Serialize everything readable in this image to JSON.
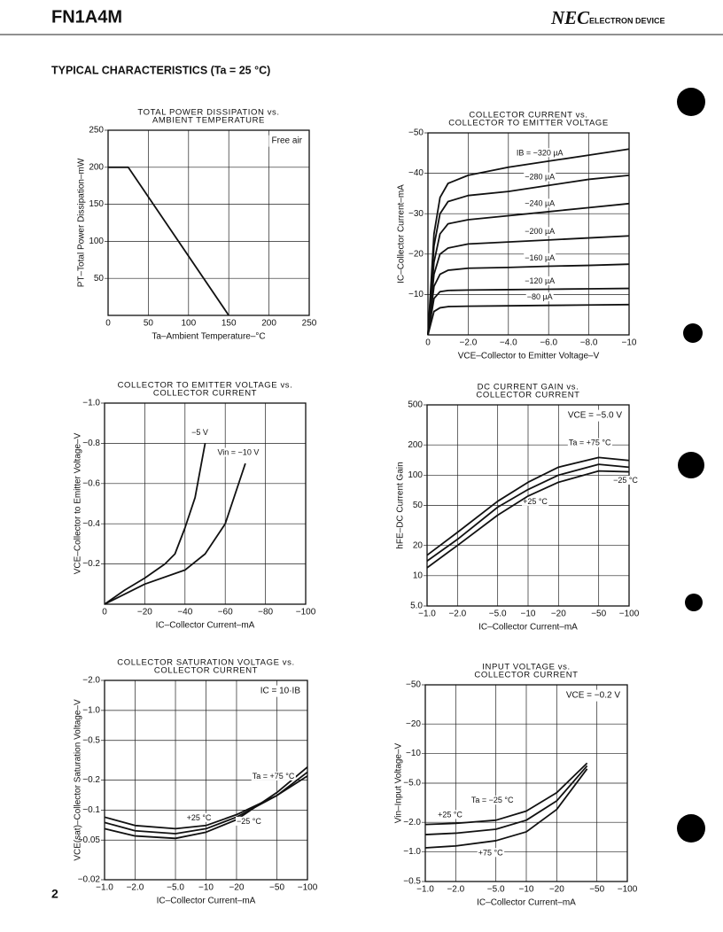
{
  "header": {
    "part": "FN1A4M",
    "brand": "NEC",
    "division": "ELECTRON DEVICE"
  },
  "section_title": "TYPICAL CHARACTERISTICS (Ta = 25 °C)",
  "page_number": "2",
  "chart_data": [
    {
      "type": "line",
      "title": [
        "TOTAL POWER DISSIPATION vs.",
        "AMBIENT TEMPERATURE"
      ],
      "xlabel": "Ta–Ambient Temperature–°C",
      "ylabel": "PT–Total Power Dissipation–mW",
      "xlim": [
        0,
        250
      ],
      "ylim": [
        0,
        250
      ],
      "xticks": [
        0,
        50,
        100,
        150,
        200,
        250
      ],
      "yticks": [
        50,
        100,
        150,
        200,
        250
      ],
      "xlog": false,
      "ylog": false,
      "grid": true,
      "color": "#111",
      "annotations": [
        "Free air"
      ],
      "series": [
        {
          "x": [
            0,
            25,
            150
          ],
          "values": [
            200,
            200,
            0
          ]
        }
      ]
    },
    {
      "type": "line",
      "title": [
        "COLLECTOR CURRENT vs.",
        "COLLECTOR TO EMITTER VOLTAGE"
      ],
      "xlabel": "VCE–Collector to Emitter Voltage–V",
      "ylabel": "IC–Collector Current–mA",
      "xlim": [
        0,
        -10
      ],
      "ylim": [
        0,
        -50
      ],
      "xticks": [
        0,
        {
          "value": -2,
          "label": "−2.0"
        },
        {
          "value": -4,
          "label": "−4.0"
        },
        {
          "value": -6,
          "label": "−6.0"
        },
        {
          "value": -8,
          "label": "−8.0"
        },
        {
          "value": -10,
          "label": "−10"
        }
      ],
      "yticks": [
        {
          "value": -10,
          "label": "−10"
        },
        {
          "value": -20,
          "label": "−20"
        },
        {
          "value": -30,
          "label": "−30"
        },
        {
          "value": -40,
          "label": "−40"
        },
        {
          "value": -50,
          "label": "−50"
        }
      ],
      "xlog": false,
      "ylog": false,
      "grid": true,
      "color": "#111",
      "series": [
        {
          "name": "IB = −320 µA",
          "x": [
            0,
            -0.3,
            -0.6,
            -1,
            -2,
            -4,
            -6,
            -8,
            -10
          ],
          "values": [
            0,
            -25,
            -34,
            -37.5,
            -39.5,
            -41.5,
            -43,
            -44.5,
            -46
          ]
        },
        {
          "name": "−280 µA",
          "x": [
            0,
            -0.3,
            -0.6,
            -1,
            -2,
            -4,
            -6,
            -8,
            -10
          ],
          "values": [
            0,
            -22,
            -30,
            -33,
            -34.5,
            -35.5,
            -37,
            -38.5,
            -39.5
          ]
        },
        {
          "name": "−240 µA",
          "x": [
            0,
            -0.3,
            -0.6,
            -1,
            -2,
            -4,
            -6,
            -8,
            -10
          ],
          "values": [
            0,
            -18,
            -25,
            -27.5,
            -28.5,
            -29.5,
            -30.5,
            -31.5,
            -32.5
          ]
        },
        {
          "name": "−200 µA",
          "x": [
            0,
            -0.3,
            -0.6,
            -1,
            -2,
            -4,
            -6,
            -8,
            -10
          ],
          "values": [
            0,
            -15,
            -20,
            -21.5,
            -22.5,
            -23,
            -23.5,
            -24,
            -24.5
          ]
        },
        {
          "name": "−160 µA",
          "x": [
            0,
            -0.3,
            -0.6,
            -1,
            -2,
            -4,
            -6,
            -8,
            -10
          ],
          "values": [
            0,
            -12,
            -15,
            -16,
            -16.5,
            -16.7,
            -17,
            -17.2,
            -17.5
          ]
        },
        {
          "name": "−120 µA",
          "x": [
            0,
            -0.3,
            -0.6,
            -1,
            -2,
            -4,
            -6,
            -8,
            -10
          ],
          "values": [
            0,
            -9,
            -10.7,
            -11,
            -11.1,
            -11.2,
            -11.3,
            -11.4,
            -11.5
          ]
        },
        {
          "name": "−80 µA",
          "x": [
            0,
            -0.3,
            -0.6,
            -1,
            -2,
            -4,
            -6,
            -8,
            -10
          ],
          "values": [
            0,
            -5.8,
            -6.7,
            -7,
            -7.1,
            -7.2,
            -7.3,
            -7.4,
            -7.5
          ]
        }
      ]
    },
    {
      "type": "line",
      "title": [
        "COLLECTOR TO EMITTER VOLTAGE vs.",
        "COLLECTOR CURRENT"
      ],
      "xlabel": "IC–Collector Current–mA",
      "ylabel": "VCE–Collector to Emitter Voltage–V",
      "xlim": [
        0,
        -100
      ],
      "ylim": [
        0,
        -1.0
      ],
      "xticks": [
        0,
        {
          "value": -20,
          "label": "−20"
        },
        {
          "value": -40,
          "label": "−40"
        },
        {
          "value": -60,
          "label": "−60"
        },
        {
          "value": -80,
          "label": "−80"
        },
        {
          "value": -100,
          "label": "−100"
        }
      ],
      "yticks": [
        {
          "value": -0.2,
          "label": "−0.2"
        },
        {
          "value": -0.4,
          "label": "−0.4"
        },
        {
          "value": -0.6,
          "label": "−0.6"
        },
        {
          "value": -0.8,
          "label": "−0.8"
        },
        {
          "value": -1.0,
          "label": "−1.0"
        }
      ],
      "xlog": false,
      "ylog": false,
      "grid": true,
      "color": "#111",
      "series": [
        {
          "name": "−5 V",
          "x": [
            0,
            -10,
            -20,
            -30,
            -35,
            -40,
            -45,
            -50
          ],
          "values": [
            0,
            -0.07,
            -0.13,
            -0.2,
            -0.25,
            -0.38,
            -0.53,
            -0.8
          ]
        },
        {
          "name": "Vin = −10 V",
          "x": [
            0,
            -20,
            -40,
            -50,
            -60,
            -70
          ],
          "values": [
            0,
            -0.1,
            -0.17,
            -0.25,
            -0.4,
            -0.7
          ]
        }
      ]
    },
    {
      "type": "line",
      "title": [
        "DC CURRENT GAIN vs.",
        "COLLECTOR CURRENT"
      ],
      "xlabel": "IC–Collector Current–mA",
      "ylabel": "hFE–DC Current Gain",
      "xlim": [
        -1,
        -100
      ],
      "ylim": [
        5,
        500
      ],
      "xticks": [
        {
          "value": -1,
          "label": "−1.0"
        },
        {
          "value": -2,
          "label": "−2.0"
        },
        {
          "value": -5,
          "label": "−5.0"
        },
        {
          "value": -10,
          "label": "−10"
        },
        {
          "value": -20,
          "label": "−20"
        },
        {
          "value": -50,
          "label": "−50"
        },
        {
          "value": -100,
          "label": "−100"
        }
      ],
      "yticks": [
        {
          "value": 5,
          "label": "5.0"
        },
        10,
        20,
        50,
        100,
        200,
        500
      ],
      "xlog": true,
      "ylog": true,
      "grid": true,
      "color": "#111",
      "annotations": [
        "VCE = −5.0 V"
      ],
      "series": [
        {
          "name": "Ta = +75 °C",
          "x": [
            -1,
            -2,
            -5,
            -10,
            -20,
            -50,
            -100
          ],
          "values": [
            16,
            27,
            55,
            85,
            120,
            150,
            140
          ]
        },
        {
          "name": "+25 °C",
          "x": [
            -1,
            -2,
            -5,
            -10,
            -20,
            -50,
            -100
          ],
          "values": [
            14,
            23,
            48,
            72,
            100,
            128,
            120
          ]
        },
        {
          "name": "−25 °C",
          "x": [
            -1,
            -2,
            -5,
            -10,
            -20,
            -50,
            -100
          ],
          "values": [
            12,
            20,
            40,
            62,
            85,
            110,
            108
          ]
        }
      ]
    },
    {
      "type": "line",
      "title": [
        "COLLECTOR SATURATION VOLTAGE vs.",
        "COLLECTOR CURRENT"
      ],
      "xlabel": "IC–Collector Current–mA",
      "ylabel": "VCE(sat)–Collector Saturation Voltage–V",
      "xlim": [
        -1,
        -100
      ],
      "ylim": [
        -0.02,
        -2.0
      ],
      "xticks": [
        {
          "value": -1,
          "label": "−1.0"
        },
        {
          "value": -2,
          "label": "−2.0"
        },
        {
          "value": -5,
          "label": "−5.0"
        },
        {
          "value": -10,
          "label": "−10"
        },
        {
          "value": -20,
          "label": "−20"
        },
        {
          "value": -50,
          "label": "−50"
        },
        {
          "value": -100,
          "label": "−100"
        }
      ],
      "yticks": [
        {
          "value": -0.02,
          "label": "−0.02"
        },
        {
          "value": -0.05,
          "label": "−0.05"
        },
        {
          "value": -0.1,
          "label": "−0.1"
        },
        {
          "value": -0.2,
          "label": "−0.2"
        },
        {
          "value": -0.5,
          "label": "−0.5"
        },
        {
          "value": -1.0,
          "label": "−1.0"
        },
        {
          "value": -2.0,
          "label": "−2.0"
        }
      ],
      "xlog": true,
      "ylog": true,
      "grid": true,
      "color": "#111",
      "annotations": [
        "IC = 10·IB"
      ],
      "series": [
        {
          "name": "Ta = +75 °C",
          "x": [
            -1,
            -2,
            -5,
            -10,
            -20,
            -50,
            -100
          ],
          "values": [
            -0.065,
            -0.055,
            -0.052,
            -0.06,
            -0.08,
            -0.15,
            -0.27
          ]
        },
        {
          "name": "+25 °C",
          "x": [
            -1,
            -2,
            -5,
            -10,
            -20,
            -50,
            -100
          ],
          "values": [
            -0.075,
            -0.062,
            -0.058,
            -0.065,
            -0.085,
            -0.14,
            -0.24
          ]
        },
        {
          "name": "−25 °C",
          "x": [
            -1,
            -2,
            -5,
            -10,
            -20,
            -50,
            -100
          ],
          "values": [
            -0.085,
            -0.07,
            -0.065,
            -0.07,
            -0.09,
            -0.14,
            -0.22
          ]
        }
      ]
    },
    {
      "type": "line",
      "title": [
        "INPUT VOLTAGE vs.",
        "COLLECTOR CURRENT"
      ],
      "xlabel": "IC–Collector Current–mA",
      "ylabel": "Vin–Input Voltage–V",
      "xlim": [
        -1,
        -100
      ],
      "ylim": [
        -0.5,
        -50
      ],
      "xticks": [
        {
          "value": -1,
          "label": "−1.0"
        },
        {
          "value": -2,
          "label": "−2.0"
        },
        {
          "value": -5,
          "label": "−5.0"
        },
        {
          "value": -10,
          "label": "−10"
        },
        {
          "value": -20,
          "label": "−20"
        },
        {
          "value": -50,
          "label": "−50"
        },
        {
          "value": -100,
          "label": "−100"
        }
      ],
      "yticks": [
        {
          "value": -0.5,
          "label": "−0.5"
        },
        {
          "value": -1.0,
          "label": "−1.0"
        },
        {
          "value": -2.0,
          "label": "−2.0"
        },
        {
          "value": -5.0,
          "label": "−5.0"
        },
        {
          "value": -10,
          "label": "−10"
        },
        {
          "value": -20,
          "label": "−20"
        },
        {
          "value": -50,
          "label": "−50"
        }
      ],
      "xlog": true,
      "ylog": true,
      "grid": true,
      "color": "#111",
      "annotations": [
        "VCE = −0.2 V"
      ],
      "series": [
        {
          "name": "+25 °C",
          "x": [
            -1,
            -2,
            -5,
            -10,
            -20,
            -40
          ],
          "values": [
            -1.5,
            -1.55,
            -1.7,
            -2.1,
            -3.3,
            -7.5
          ]
        },
        {
          "name": "Ta = −25 °C",
          "x": [
            -1,
            -2,
            -5,
            -10,
            -20,
            -40
          ],
          "values": [
            -1.9,
            -1.95,
            -2.1,
            -2.6,
            -4,
            -8
          ]
        },
        {
          "name": "+75 °C",
          "x": [
            -1,
            -2,
            -5,
            -10,
            -20,
            -40
          ],
          "values": [
            -1.1,
            -1.15,
            -1.3,
            -1.6,
            -2.7,
            -7
          ]
        }
      ]
    }
  ]
}
